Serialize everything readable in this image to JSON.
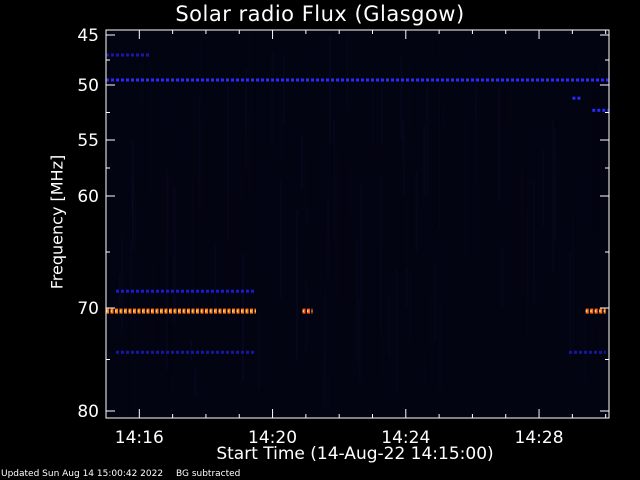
{
  "chart_data": {
    "type": "heatmap",
    "title": "Solar radio Flux (Glasgow)",
    "ylabel": "Frequency [MHz]",
    "xlabel": "Start Time (14-Aug-22 14:15:00)",
    "y_ticks": [
      45,
      50,
      55,
      60,
      70,
      80
    ],
    "ylim": [
      45,
      80
    ],
    "x_ticks": [
      "14:16",
      "14:20",
      "14:24",
      "14:28"
    ],
    "x_tick_minutes": [
      16,
      20,
      24,
      28
    ],
    "xlim_minutes": [
      15,
      30.1
    ],
    "grid": false,
    "features": [
      {
        "frequency": 49.5,
        "start_min": 15.0,
        "end_min": 30.1,
        "intensity": "medium",
        "color": "#2a2aff"
      },
      {
        "frequency": 47.0,
        "start_min": 15.0,
        "end_min": 16.3,
        "intensity": "low",
        "color": "#1818a8"
      },
      {
        "frequency": 51.2,
        "start_min": 29.0,
        "end_min": 29.3,
        "intensity": "medium",
        "color": "#2a2aff"
      },
      {
        "frequency": 52.3,
        "start_min": 29.6,
        "end_min": 30.1,
        "intensity": "medium",
        "color": "#2a2aff"
      },
      {
        "frequency": 68.5,
        "start_min": 15.3,
        "end_min": 19.5,
        "intensity": "low",
        "color": "#1a1ad0"
      },
      {
        "frequency": 70.3,
        "start_min": 15.0,
        "end_min": 19.5,
        "intensity": "high",
        "color": "#ff7a1a"
      },
      {
        "frequency": 70.3,
        "start_min": 20.9,
        "end_min": 21.2,
        "intensity": "high",
        "color": "#ff5a1a"
      },
      {
        "frequency": 70.3,
        "start_min": 29.4,
        "end_min": 30.0,
        "intensity": "high",
        "color": "#ff6a1a"
      },
      {
        "frequency": 74.3,
        "start_min": 15.3,
        "end_min": 19.5,
        "intensity": "low",
        "color": "#1616a0"
      },
      {
        "frequency": 74.3,
        "start_min": 28.9,
        "end_min": 30.0,
        "intensity": "low",
        "color": "#1616a0"
      }
    ]
  },
  "footer": {
    "updated": "Updated Sun Aug 14 15:00:42 2022",
    "note": "BG subtracted"
  },
  "colors": {
    "background": "#000000",
    "plot_background": "#020412",
    "axis": "#ffffff",
    "text": "#ffffff"
  }
}
